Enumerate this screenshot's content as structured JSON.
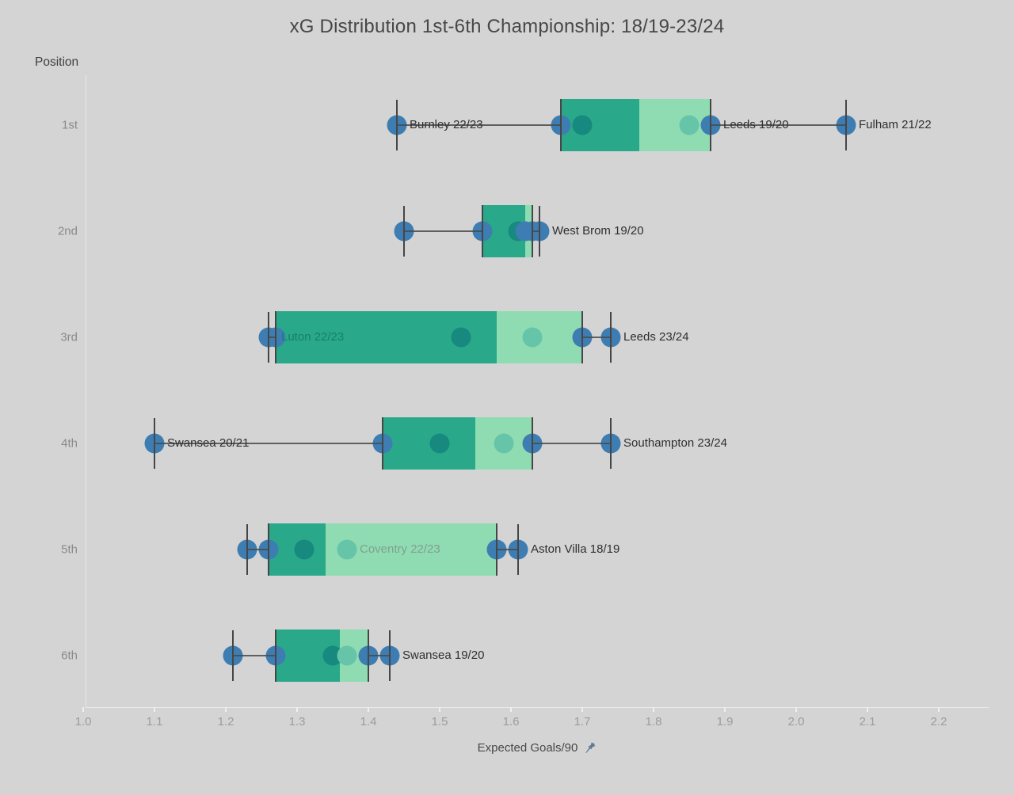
{
  "title": "xG Distribution 1st-6th Championship: 18/19-23/24",
  "y_axis": {
    "header": "Position",
    "categories": [
      "1st",
      "2nd",
      "3rd",
      "4th",
      "5th",
      "6th"
    ]
  },
  "x_axis": {
    "label": "Expected Goals/90",
    "tick_labels": [
      "1.0",
      "1.1",
      "1.2",
      "1.3",
      "1.4",
      "1.5",
      "1.6",
      "1.7",
      "1.8",
      "1.9",
      "2.0",
      "2.1",
      "2.2"
    ],
    "min": 1.0,
    "max": 2.2
  },
  "colors": {
    "background": "#d4d4d4",
    "box_lower": "#2aa88a",
    "box_upper": "#8fdcb3",
    "dot_blue": "#3e7db2",
    "dot_dark_teal": "#17897e",
    "dot_light_teal": "#66c4a8",
    "whisker": "#464646",
    "pin": "#5d7b9a"
  },
  "chart_data": {
    "type": "boxplot-horizontal",
    "title": "xG Distribution 1st-6th Championship: 18/19-23/24",
    "xlabel": "Expected Goals/90",
    "ylabel": "Position",
    "x_range": [
      1.0,
      2.2
    ],
    "grid": false,
    "rows": [
      {
        "position": "1st",
        "box": {
          "whisker_low": 1.44,
          "q1": 1.67,
          "median": 1.78,
          "q3": 1.88,
          "whisker_high": 2.07
        },
        "points": [
          {
            "x": 1.44,
            "tone": "blue",
            "label": "Burnley 22/23"
          },
          {
            "x": 1.67,
            "tone": "blue"
          },
          {
            "x": 1.7,
            "tone": "dark"
          },
          {
            "x": 1.85,
            "tone": "light"
          },
          {
            "x": 1.88,
            "tone": "blue",
            "label": "Leeds 19/20"
          },
          {
            "x": 2.07,
            "tone": "blue",
            "label": "Fulham 21/22"
          }
        ]
      },
      {
        "position": "2nd",
        "box": {
          "whisker_low": 1.45,
          "q1": 1.56,
          "median": 1.62,
          "q3": 1.63,
          "whisker_high": 1.64
        },
        "points": [
          {
            "x": 1.45,
            "tone": "blue"
          },
          {
            "x": 1.56,
            "tone": "blue"
          },
          {
            "x": 1.61,
            "tone": "dark"
          },
          {
            "x": 1.62,
            "tone": "blue"
          },
          {
            "x": 1.63,
            "tone": "blue"
          },
          {
            "x": 1.64,
            "tone": "blue",
            "label": "West Brom 19/20"
          }
        ]
      },
      {
        "position": "3rd",
        "box": {
          "whisker_low": 1.26,
          "q1": 1.27,
          "median": 1.58,
          "q3": 1.7,
          "whisker_high": 1.74
        },
        "points": [
          {
            "x": 1.26,
            "tone": "blue",
            "label": "Luton 22/23",
            "label_style": "on-dark"
          },
          {
            "x": 1.27,
            "tone": "blue"
          },
          {
            "x": 1.53,
            "tone": "dark"
          },
          {
            "x": 1.63,
            "tone": "light"
          },
          {
            "x": 1.7,
            "tone": "blue"
          },
          {
            "x": 1.74,
            "tone": "blue",
            "label": "Leeds 23/24"
          }
        ]
      },
      {
        "position": "4th",
        "box": {
          "whisker_low": 1.1,
          "q1": 1.42,
          "median": 1.55,
          "q3": 1.63,
          "whisker_high": 1.74
        },
        "points": [
          {
            "x": 1.1,
            "tone": "blue",
            "label": "Swansea 20/21"
          },
          {
            "x": 1.42,
            "tone": "blue"
          },
          {
            "x": 1.5,
            "tone": "dark"
          },
          {
            "x": 1.59,
            "tone": "light"
          },
          {
            "x": 1.63,
            "tone": "blue"
          },
          {
            "x": 1.74,
            "tone": "blue",
            "label": "Southampton 23/24"
          }
        ]
      },
      {
        "position": "5th",
        "box": {
          "whisker_low": 1.23,
          "q1": 1.26,
          "median": 1.34,
          "q3": 1.58,
          "whisker_high": 1.61
        },
        "points": [
          {
            "x": 1.23,
            "tone": "blue"
          },
          {
            "x": 1.26,
            "tone": "blue"
          },
          {
            "x": 1.31,
            "tone": "dark"
          },
          {
            "x": 1.37,
            "tone": "light",
            "label": "Coventry 22/23",
            "label_style": "on-light"
          },
          {
            "x": 1.58,
            "tone": "blue"
          },
          {
            "x": 1.61,
            "tone": "blue",
            "label": "Aston Villa 18/19"
          }
        ]
      },
      {
        "position": "6th",
        "box": {
          "whisker_low": 1.21,
          "q1": 1.27,
          "median": 1.36,
          "q3": 1.4,
          "whisker_high": 1.43
        },
        "points": [
          {
            "x": 1.21,
            "tone": "blue"
          },
          {
            "x": 1.27,
            "tone": "blue"
          },
          {
            "x": 1.35,
            "tone": "dark"
          },
          {
            "x": 1.37,
            "tone": "light"
          },
          {
            "x": 1.4,
            "tone": "blue"
          },
          {
            "x": 1.43,
            "tone": "blue",
            "label": "Swansea 19/20"
          }
        ]
      }
    ]
  }
}
